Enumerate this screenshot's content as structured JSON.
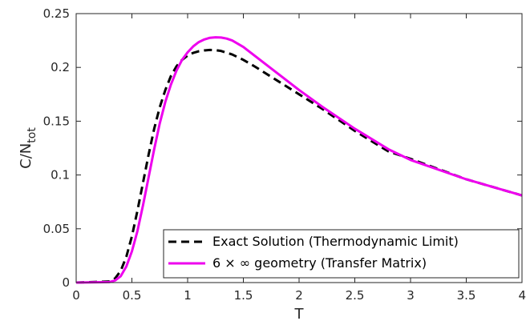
{
  "chart_data": {
    "type": "line",
    "title": "",
    "xlabel": "T",
    "ylabel": "C/N",
    "ylabel_subscript": "tot",
    "xlim": [
      0,
      4
    ],
    "ylim": [
      0,
      0.25
    ],
    "xticks": [
      0,
      0.5,
      1,
      1.5,
      2,
      2.5,
      3,
      3.5,
      4
    ],
    "yticks": [
      0,
      0.05,
      0.1,
      0.15,
      0.2,
      0.25
    ],
    "xtick_labels": [
      "0",
      "0.5",
      "1",
      "1.5",
      "2",
      "2.5",
      "3",
      "3.5",
      "4"
    ],
    "ytick_labels": [
      "0",
      "0.05",
      "0.1",
      "0.15",
      "0.2",
      "0.25"
    ],
    "grid": false,
    "legend_position": "bottom-right",
    "series": [
      {
        "name": "Exact Solution (Thermodynamic Limit)",
        "color": "#000000",
        "style": "dashed",
        "x": [
          0,
          0.3,
          0.35,
          0.4,
          0.45,
          0.5,
          0.55,
          0.6,
          0.65,
          0.7,
          0.75,
          0.8,
          0.85,
          0.9,
          0.95,
          1.0,
          1.05,
          1.1,
          1.15,
          1.2,
          1.25,
          1.3,
          1.4,
          1.5,
          1.6,
          1.8,
          2.0,
          2.2,
          2.5,
          2.8,
          3.0,
          3.5,
          4.0
        ],
        "y": [
          0,
          0.001,
          0.004,
          0.011,
          0.024,
          0.043,
          0.067,
          0.093,
          0.119,
          0.143,
          0.163,
          0.179,
          0.192,
          0.201,
          0.207,
          0.211,
          0.2135,
          0.215,
          0.2158,
          0.2162,
          0.216,
          0.2153,
          0.212,
          0.207,
          0.201,
          0.188,
          0.175,
          0.162,
          0.141,
          0.122,
          0.115,
          0.096,
          0.081
        ]
      },
      {
        "name": "6 × ∞ geometry (Transfer Matrix)",
        "color": "#ee00ee",
        "style": "solid",
        "x": [
          0,
          0.3,
          0.35,
          0.4,
          0.45,
          0.5,
          0.55,
          0.6,
          0.65,
          0.7,
          0.75,
          0.8,
          0.85,
          0.9,
          0.95,
          1.0,
          1.05,
          1.1,
          1.15,
          1.2,
          1.25,
          1.3,
          1.35,
          1.4,
          1.5,
          1.6,
          1.8,
          2.0,
          2.2,
          2.5,
          2.8,
          3.0,
          3.5,
          4.0
        ],
        "y": [
          0,
          0.0005,
          0.002,
          0.006,
          0.015,
          0.029,
          0.048,
          0.072,
          0.098,
          0.124,
          0.148,
          0.168,
          0.184,
          0.197,
          0.207,
          0.214,
          0.2195,
          0.2235,
          0.226,
          0.2275,
          0.228,
          0.2278,
          0.2268,
          0.225,
          0.219,
          0.211,
          0.195,
          0.179,
          0.164,
          0.143,
          0.124,
          0.114,
          0.096,
          0.081
        ]
      }
    ]
  }
}
